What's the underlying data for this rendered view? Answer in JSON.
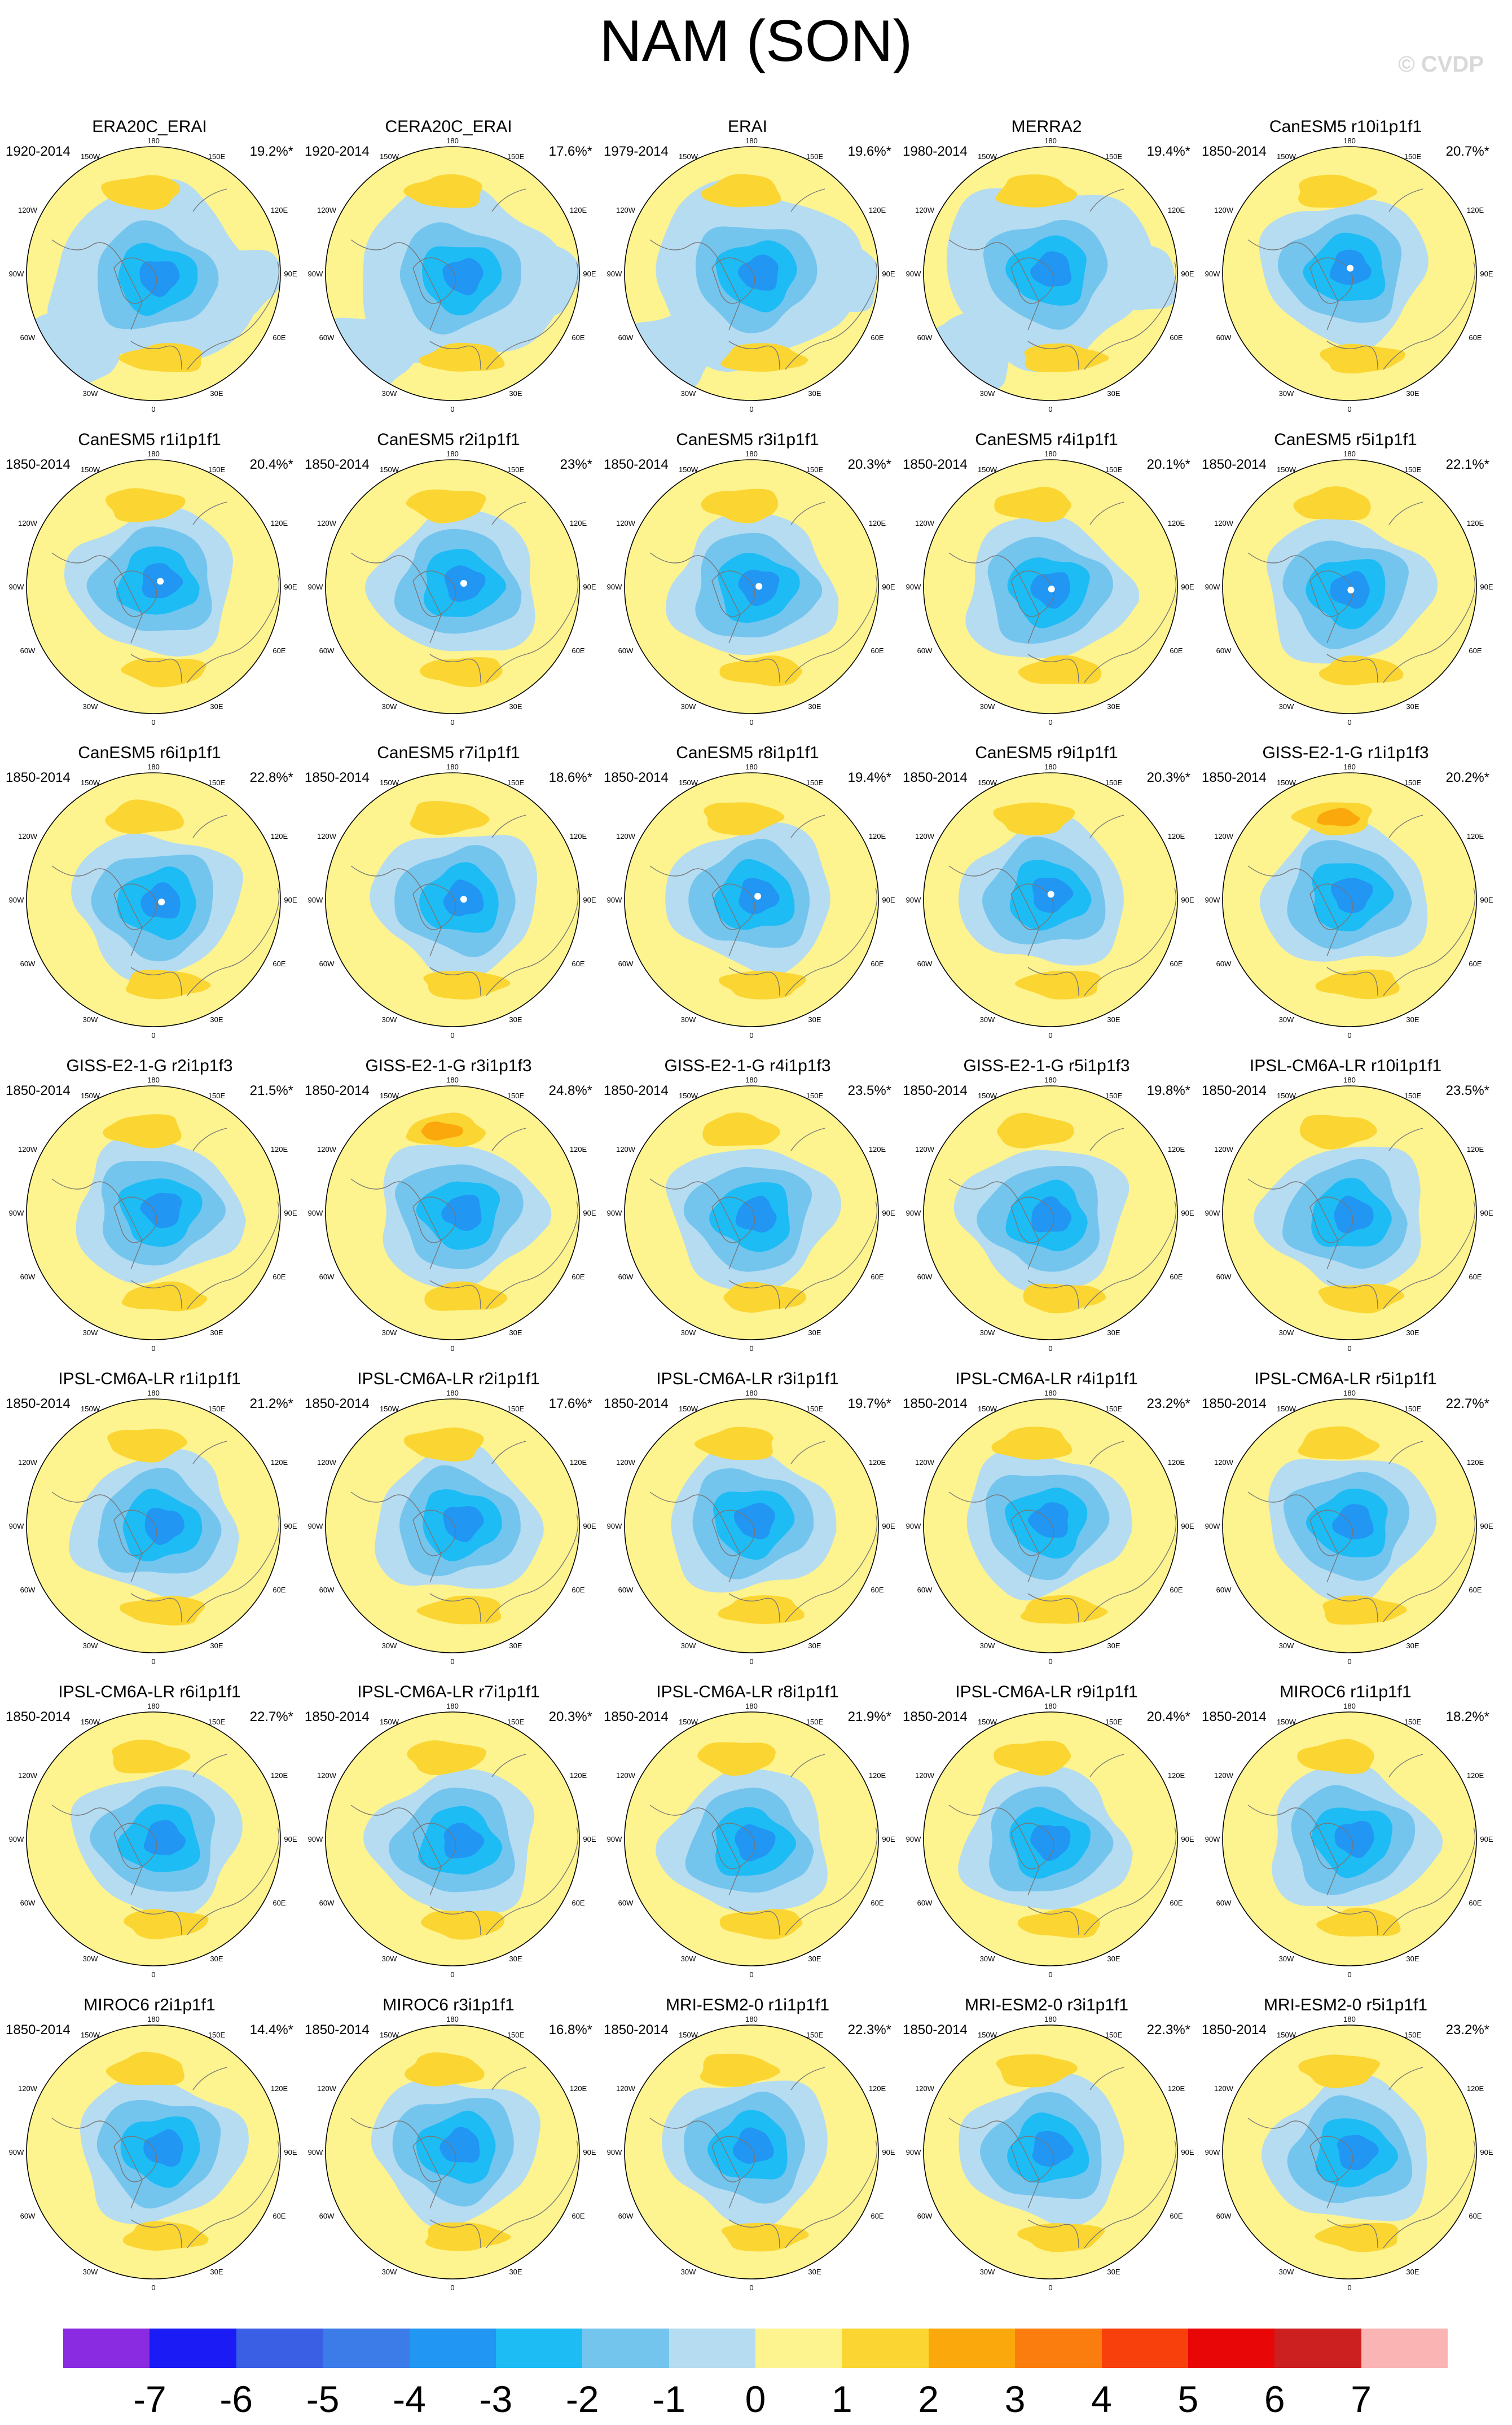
{
  "title": "NAM (SON)",
  "watermark": "© CVDP",
  "map_labels": {
    "lon_180": "180",
    "lon_150w": "150W",
    "lon_150e": "150E",
    "lon_120w": "120W",
    "lon_120e": "120E",
    "lon_90w": "90W",
    "lon_90e": "90E",
    "lon_60w": "60W",
    "lon_60e": "60E",
    "lon_30w": "30W",
    "lon_30e": "30E",
    "lon_0": "0"
  },
  "panels": [
    {
      "name": "ERA20C_ERAI",
      "period": "1920-2014",
      "pct": "19.2%*"
    },
    {
      "name": "CERA20C_ERAI",
      "period": "1920-2014",
      "pct": "17.6%*"
    },
    {
      "name": "ERAI",
      "period": "1979-2014",
      "pct": "19.6%*"
    },
    {
      "name": "MERRA2",
      "period": "1980-2014",
      "pct": "19.4%*"
    },
    {
      "name": "CanESM5 r10i1p1f1",
      "period": "1850-2014",
      "pct": "20.7%*"
    },
    {
      "name": "CanESM5 r1i1p1f1",
      "period": "1850-2014",
      "pct": "20.4%*"
    },
    {
      "name": "CanESM5 r2i1p1f1",
      "period": "1850-2014",
      "pct": "23%*"
    },
    {
      "name": "CanESM5 r3i1p1f1",
      "period": "1850-2014",
      "pct": "20.3%*"
    },
    {
      "name": "CanESM5 r4i1p1f1",
      "period": "1850-2014",
      "pct": "20.1%*"
    },
    {
      "name": "CanESM5 r5i1p1f1",
      "period": "1850-2014",
      "pct": "22.1%*"
    },
    {
      "name": "CanESM5 r6i1p1f1",
      "period": "1850-2014",
      "pct": "22.8%*"
    },
    {
      "name": "CanESM5 r7i1p1f1",
      "period": "1850-2014",
      "pct": "18.6%*"
    },
    {
      "name": "CanESM5 r8i1p1f1",
      "period": "1850-2014",
      "pct": "19.4%*"
    },
    {
      "name": "CanESM5 r9i1p1f1",
      "period": "1850-2014",
      "pct": "20.3%*"
    },
    {
      "name": "GISS-E2-1-G r1i1p1f3",
      "period": "1850-2014",
      "pct": "20.2%*"
    },
    {
      "name": "GISS-E2-1-G r2i1p1f3",
      "period": "1850-2014",
      "pct": "21.5%*"
    },
    {
      "name": "GISS-E2-1-G r3i1p1f3",
      "period": "1850-2014",
      "pct": "24.8%*"
    },
    {
      "name": "GISS-E2-1-G r4i1p1f3",
      "period": "1850-2014",
      "pct": "23.5%*"
    },
    {
      "name": "GISS-E2-1-G r5i1p1f3",
      "period": "1850-2014",
      "pct": "19.8%*"
    },
    {
      "name": "IPSL-CM6A-LR r10i1p1f1",
      "period": "1850-2014",
      "pct": "23.5%*"
    },
    {
      "name": "IPSL-CM6A-LR r1i1p1f1",
      "period": "1850-2014",
      "pct": "21.2%*"
    },
    {
      "name": "IPSL-CM6A-LR r2i1p1f1",
      "period": "1850-2014",
      "pct": "17.6%*"
    },
    {
      "name": "IPSL-CM6A-LR r3i1p1f1",
      "period": "1850-2014",
      "pct": "19.7%*"
    },
    {
      "name": "IPSL-CM6A-LR r4i1p1f1",
      "period": "1850-2014",
      "pct": "23.2%*"
    },
    {
      "name": "IPSL-CM6A-LR r5i1p1f1",
      "period": "1850-2014",
      "pct": "22.7%*"
    },
    {
      "name": "IPSL-CM6A-LR r6i1p1f1",
      "period": "1850-2014",
      "pct": "22.7%*"
    },
    {
      "name": "IPSL-CM6A-LR r7i1p1f1",
      "period": "1850-2014",
      "pct": "20.3%*"
    },
    {
      "name": "IPSL-CM6A-LR r8i1p1f1",
      "period": "1850-2014",
      "pct": "21.9%*"
    },
    {
      "name": "IPSL-CM6A-LR r9i1p1f1",
      "period": "1850-2014",
      "pct": "20.4%*"
    },
    {
      "name": "MIROC6 r1i1p1f1",
      "period": "1850-2014",
      "pct": "18.2%*"
    },
    {
      "name": "MIROC6 r2i1p1f1",
      "period": "1850-2014",
      "pct": "14.4%*"
    },
    {
      "name": "MIROC6 r3i1p1f1",
      "period": "1850-2014",
      "pct": "16.8%*"
    },
    {
      "name": "MRI-ESM2-0 r1i1p1f1",
      "period": "1850-2014",
      "pct": "22.3%*"
    },
    {
      "name": "MRI-ESM2-0 r3i1p1f1",
      "period": "1850-2014",
      "pct": "22.3%*"
    },
    {
      "name": "MRI-ESM2-0 r5i1p1f1",
      "period": "1850-2014",
      "pct": "23.2%*"
    }
  ],
  "colorbar": {
    "colors": [
      "#8a2be2",
      "#1b1bf5",
      "#3a5fe5",
      "#3b7ce8",
      "#2196f3",
      "#1ebcf5",
      "#74c5ee",
      "#b6dcf2",
      "#fdf38f",
      "#fbd532",
      "#fba80d",
      "#fb7d0e",
      "#f8400c",
      "#e80606",
      "#cc1f1f",
      "#fbb4b4"
    ],
    "labels": [
      "-7",
      "-6",
      "-5",
      "-4",
      "-3",
      "-2",
      "-1",
      "0",
      "1",
      "2",
      "3",
      "4",
      "5",
      "6",
      "7"
    ]
  },
  "palette": {
    "ocean_yellow": "#fdf38f",
    "blue_light": "#b6dcf2",
    "blue_mid": "#74c5ee",
    "blue_strong": "#1ebcf5",
    "blue_deep": "#2196f3",
    "orange_light": "#fbd532",
    "orange_mid": "#fba80d",
    "coast": "#777777"
  }
}
